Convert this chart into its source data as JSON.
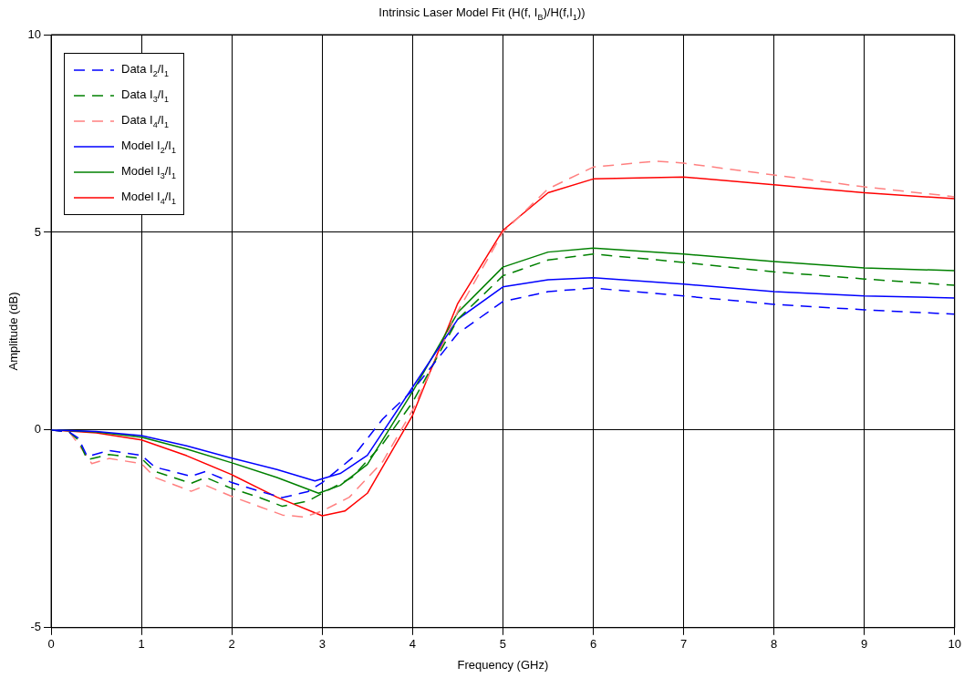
{
  "chart_data": {
    "type": "line",
    "title": "Intrinsic Laser Model Fit (H(f, I$_{B}$)/H(f,I$_{1}$))",
    "xlabel": "Frequency (GHz)",
    "ylabel": "Amplitude (dB)",
    "xlim": [
      0,
      10
    ],
    "xticks": [
      0,
      1,
      2,
      3,
      4,
      5,
      6,
      7,
      8,
      9,
      10
    ],
    "ylim": [
      -5,
      10
    ],
    "yticks": [
      -5,
      0,
      5,
      10
    ],
    "grid": true,
    "legend": "top left",
    "marker": "none",
    "series": [
      {
        "name": "Data I$_{2}$/I$_{1}$",
        "color": "#0000ff",
        "line_style": "dashed",
        "x": [
          0,
          0.2,
          0.3,
          0.4,
          0.64,
          1.0,
          1.15,
          1.55,
          1.71,
          2.0,
          2.32,
          2.56,
          2.84,
          3.0,
          3.33,
          3.67,
          4.0,
          4.5,
          5.0,
          5.5,
          6.0,
          7.0,
          8.0,
          9.0,
          10.0
        ],
        "values": [
          0,
          -0.05,
          -0.2,
          -0.67,
          -0.52,
          -0.64,
          -0.94,
          -1.17,
          -1.05,
          -1.33,
          -1.56,
          -1.71,
          -1.56,
          -1.33,
          -0.71,
          0.28,
          1.0,
          2.44,
          3.25,
          3.5,
          3.59,
          3.39,
          3.18,
          3.04,
          2.93
        ]
      },
      {
        "name": "Data I$_{3}$/I$_{1}$",
        "color": "#008000",
        "line_style": "dashed",
        "x": [
          0,
          0.2,
          0.3,
          0.4,
          0.64,
          1.0,
          1.15,
          1.55,
          1.71,
          2.0,
          2.32,
          2.56,
          2.84,
          3.0,
          3.33,
          3.67,
          4.0,
          4.5,
          5.0,
          5.5,
          6.0,
          7.0,
          8.0,
          9.0,
          10.0
        ],
        "values": [
          0,
          -0.05,
          -0.25,
          -0.75,
          -0.62,
          -0.72,
          -1.05,
          -1.35,
          -1.2,
          -1.48,
          -1.72,
          -1.93,
          -1.8,
          -1.6,
          -1.2,
          -0.35,
          0.7,
          2.8,
          3.9,
          4.3,
          4.45,
          4.24,
          4.0,
          3.82,
          3.66
        ]
      },
      {
        "name": "Data I$_{4}$/I$_{1}$",
        "color": "#ff8080",
        "line_style": "dashed",
        "x": [
          0,
          0.2,
          0.3,
          0.45,
          0.64,
          1.0,
          1.15,
          1.55,
          1.71,
          2.0,
          2.32,
          2.56,
          2.8,
          3.0,
          3.3,
          3.67,
          4.0,
          4.5,
          5.0,
          5.5,
          6.0,
          6.7,
          7.0,
          8.0,
          9.0,
          10.0
        ],
        "values": [
          0,
          -0.05,
          -0.35,
          -0.85,
          -0.72,
          -0.85,
          -1.2,
          -1.55,
          -1.4,
          -1.68,
          -1.95,
          -2.15,
          -2.2,
          -2.05,
          -1.7,
          -0.8,
          0.5,
          3.0,
          5.0,
          6.1,
          6.65,
          6.8,
          6.75,
          6.45,
          6.15,
          5.9
        ]
      },
      {
        "name": "Model I$_{2}$/I$_{1}$",
        "color": "#0000ff",
        "line_style": "solid",
        "x": [
          0,
          0.5,
          1.0,
          1.5,
          2.0,
          2.5,
          2.92,
          3.2,
          3.5,
          4.0,
          4.5,
          5.0,
          5.5,
          6.0,
          7.0,
          8.0,
          9.0,
          10.0
        ],
        "values": [
          0,
          -0.04,
          -0.14,
          -0.4,
          -0.71,
          -1.0,
          -1.29,
          -1.1,
          -0.64,
          1.08,
          2.8,
          3.62,
          3.8,
          3.85,
          3.69,
          3.5,
          3.39,
          3.34
        ]
      },
      {
        "name": "Model I$_{3}$/I$_{1}$",
        "color": "#008000",
        "line_style": "solid",
        "x": [
          0,
          0.5,
          1.0,
          1.5,
          2.0,
          2.5,
          2.96,
          3.2,
          3.5,
          4.0,
          4.5,
          5.0,
          5.5,
          6.0,
          7.0,
          8.0,
          9.0,
          10.0
        ],
        "values": [
          0,
          -0.05,
          -0.18,
          -0.48,
          -0.83,
          -1.2,
          -1.6,
          -1.4,
          -0.87,
          0.97,
          2.97,
          4.12,
          4.5,
          4.6,
          4.45,
          4.26,
          4.1,
          4.03
        ]
      },
      {
        "name": "Model I$_{4}$/I$_{1}$",
        "color": "#ff0000",
        "line_style": "solid",
        "x": [
          0,
          0.5,
          1.0,
          1.5,
          2.0,
          2.5,
          3.0,
          3.25,
          3.5,
          4.0,
          4.5,
          5.0,
          5.5,
          6.0,
          7.0,
          8.0,
          9.0,
          10.0
        ],
        "values": [
          0,
          -0.07,
          -0.25,
          -0.65,
          -1.13,
          -1.7,
          -2.17,
          -2.05,
          -1.6,
          0.37,
          3.2,
          5.05,
          6.0,
          6.35,
          6.4,
          6.2,
          6.0,
          5.85
        ]
      }
    ]
  }
}
